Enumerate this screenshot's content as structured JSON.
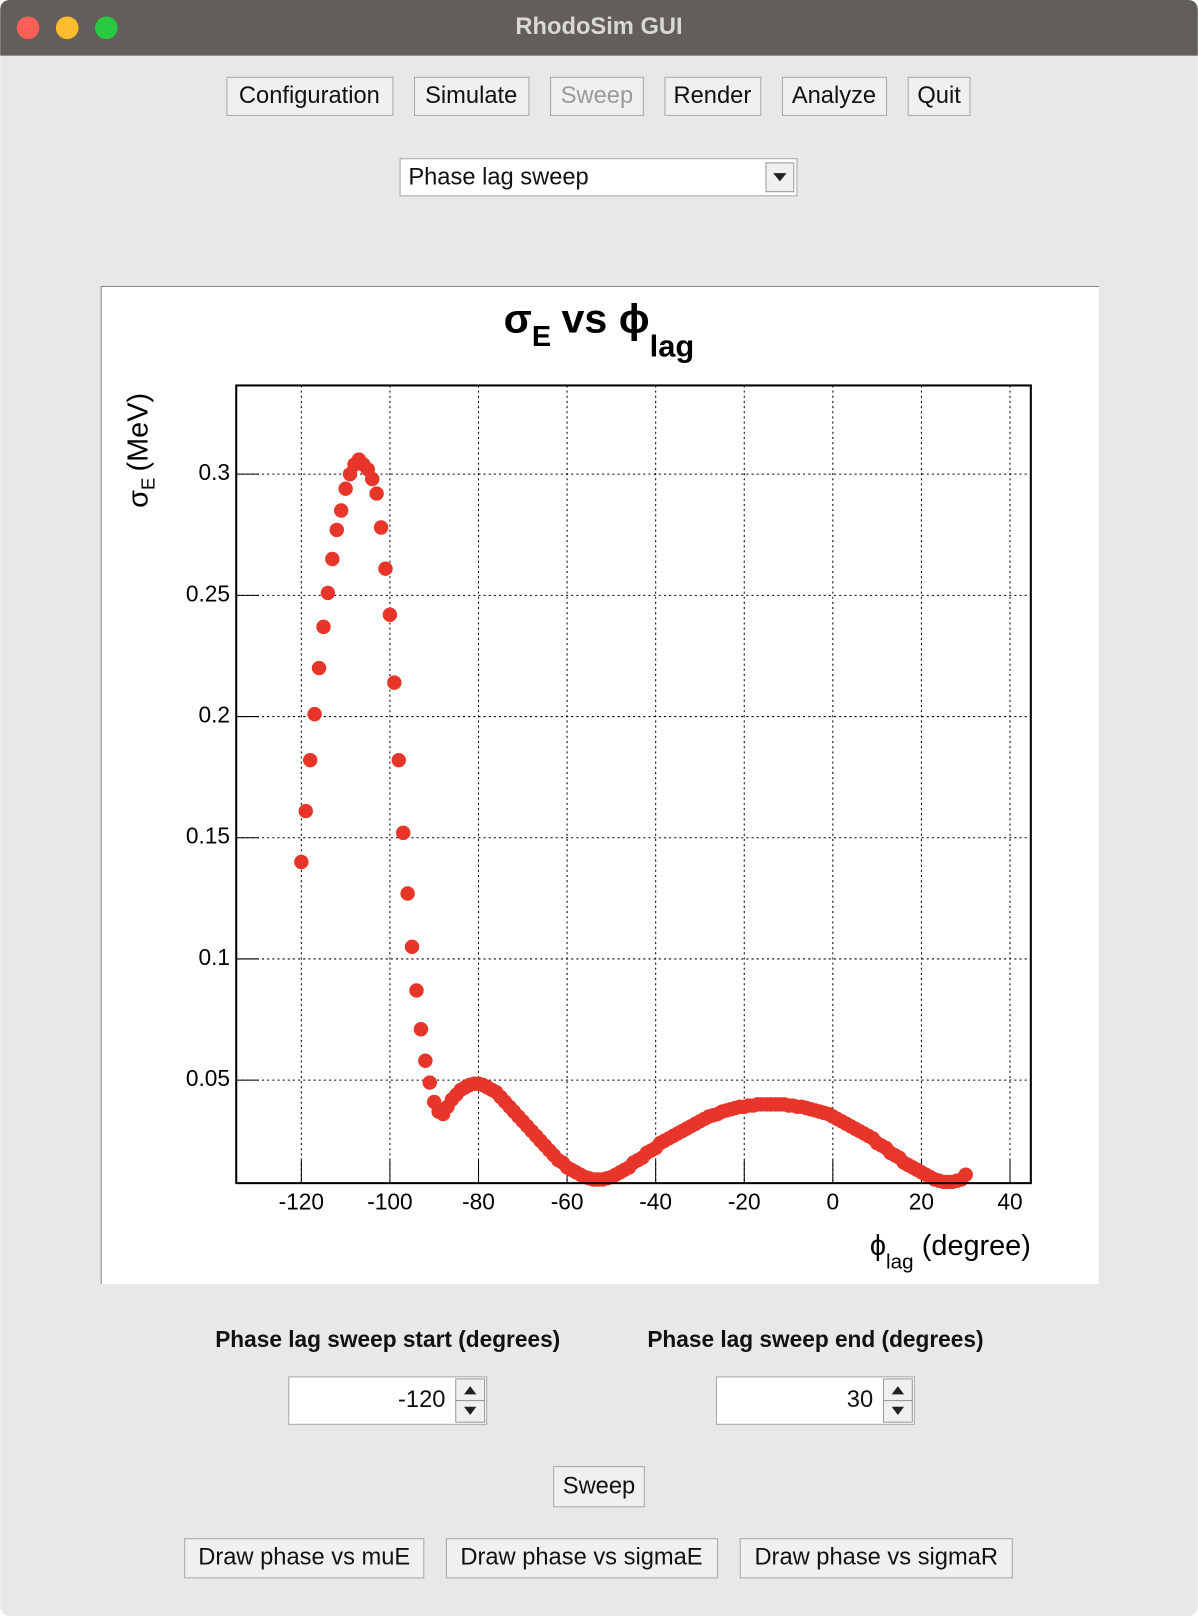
{
  "window": {
    "title": "RhodoSim GUI"
  },
  "menu": [
    "Configuration",
    "Simulate",
    "Sweep",
    "Render",
    "Analyze",
    "Quit"
  ],
  "dropdown": "Phase lag sweep",
  "chart_data": {
    "type": "scatter",
    "title": [
      "σ",
      "E",
      "vs ϕ",
      "lag"
    ],
    "y_label": [
      "σ",
      "E",
      "(MeV)"
    ],
    "x_label": [
      "ϕ",
      "lag",
      "(degree)"
    ],
    "color": "#e8352a",
    "grid": true,
    "xlim": [
      -134.7,
      44.7
    ],
    "ylim": [
      0.0075,
      0.3366
    ],
    "xticks": [
      -120,
      -100,
      -80,
      -60,
      -40,
      -20,
      0,
      20,
      40
    ],
    "yticks": [
      0.05,
      0.1,
      0.15,
      0.2,
      0.25,
      0.3
    ],
    "x": [
      -120,
      -119,
      -118,
      -117,
      -116,
      -115,
      -114,
      -113,
      -112,
      -111,
      -110,
      -109,
      -108,
      -107,
      -106,
      -105,
      -104,
      -103,
      -102,
      -101,
      -100,
      -99,
      -98,
      -97,
      -96,
      -95,
      -94,
      -93,
      -92,
      -91,
      -90,
      -89,
      -88,
      -87,
      -86,
      -85,
      -84,
      -83,
      -82,
      -81,
      -80,
      -79,
      -78,
      -77,
      -76,
      -75,
      -74,
      -73,
      -72,
      -71,
      -70,
      -69,
      -68,
      -67,
      -66,
      -65,
      -64,
      -63,
      -62,
      -61,
      -60,
      -59,
      -58,
      -57,
      -56,
      -55,
      -54,
      -53,
      -52,
      -51,
      -50,
      -49,
      -48,
      -47,
      -46,
      -45,
      -44,
      -43,
      -42,
      -41,
      -40,
      -39,
      -38,
      -37,
      -36,
      -35,
      -34,
      -33,
      -32,
      -31,
      -30,
      -29,
      -28,
      -27,
      -26,
      -25,
      -24,
      -23,
      -22,
      -21,
      -20,
      -19,
      -18,
      -17,
      -16,
      -15,
      -14,
      -13,
      -12,
      -11,
      -10,
      -9,
      -8,
      -7,
      -6,
      -5,
      -4,
      -3,
      -2,
      -1,
      0,
      1,
      2,
      3,
      4,
      5,
      6,
      7,
      8,
      9,
      10,
      11,
      12,
      13,
      14,
      15,
      16,
      17,
      18,
      19,
      20,
      21,
      22,
      23,
      24,
      25,
      26,
      27,
      28,
      29,
      30
    ],
    "values": [
      0.14,
      0.161,
      0.182,
      0.201,
      0.22,
      0.237,
      0.251,
      0.265,
      0.277,
      0.285,
      0.294,
      0.3,
      0.304,
      0.306,
      0.304,
      0.302,
      0.298,
      0.292,
      0.278,
      0.261,
      0.242,
      0.214,
      0.182,
      0.152,
      0.127,
      0.105,
      0.087,
      0.071,
      0.058,
      0.049,
      0.041,
      0.037,
      0.036,
      0.039,
      0.042,
      0.044,
      0.046,
      0.047,
      0.048,
      0.0485,
      0.0485,
      0.048,
      0.047,
      0.046,
      0.045,
      0.043,
      0.041,
      0.039,
      0.037,
      0.035,
      0.033,
      0.031,
      0.029,
      0.027,
      0.025,
      0.023,
      0.021,
      0.019,
      0.017,
      0.016,
      0.014,
      0.013,
      0.012,
      0.011,
      0.01,
      0.0095,
      0.009,
      0.009,
      0.009,
      0.0095,
      0.01,
      0.011,
      0.012,
      0.013,
      0.014,
      0.016,
      0.017,
      0.018,
      0.02,
      0.021,
      0.022,
      0.024,
      0.025,
      0.026,
      0.027,
      0.028,
      0.029,
      0.03,
      0.031,
      0.032,
      0.033,
      0.034,
      0.035,
      0.0355,
      0.036,
      0.037,
      0.0375,
      0.038,
      0.0385,
      0.039,
      0.039,
      0.0395,
      0.0395,
      0.04,
      0.04,
      0.04,
      0.04,
      0.04,
      0.04,
      0.04,
      0.0395,
      0.0395,
      0.039,
      0.039,
      0.0385,
      0.038,
      0.0375,
      0.037,
      0.0365,
      0.036,
      0.035,
      0.034,
      0.033,
      0.032,
      0.031,
      0.03,
      0.029,
      0.028,
      0.027,
      0.026,
      0.024,
      0.023,
      0.022,
      0.02,
      0.019,
      0.018,
      0.016,
      0.015,
      0.014,
      0.013,
      0.012,
      0.011,
      0.01,
      0.009,
      0.0085,
      0.008,
      0.008,
      0.008,
      0.0085,
      0.009,
      0.011
    ]
  },
  "sweep_start": {
    "label": "Phase lag sweep start (degrees)",
    "value": "-120"
  },
  "sweep_end": {
    "label": "Phase lag sweep end (degrees)",
    "value": "30"
  },
  "sweep_button": "Sweep",
  "draw_buttons": [
    "Draw phase vs muE",
    "Draw phase vs sigmaE",
    "Draw phase vs sigmaR"
  ]
}
